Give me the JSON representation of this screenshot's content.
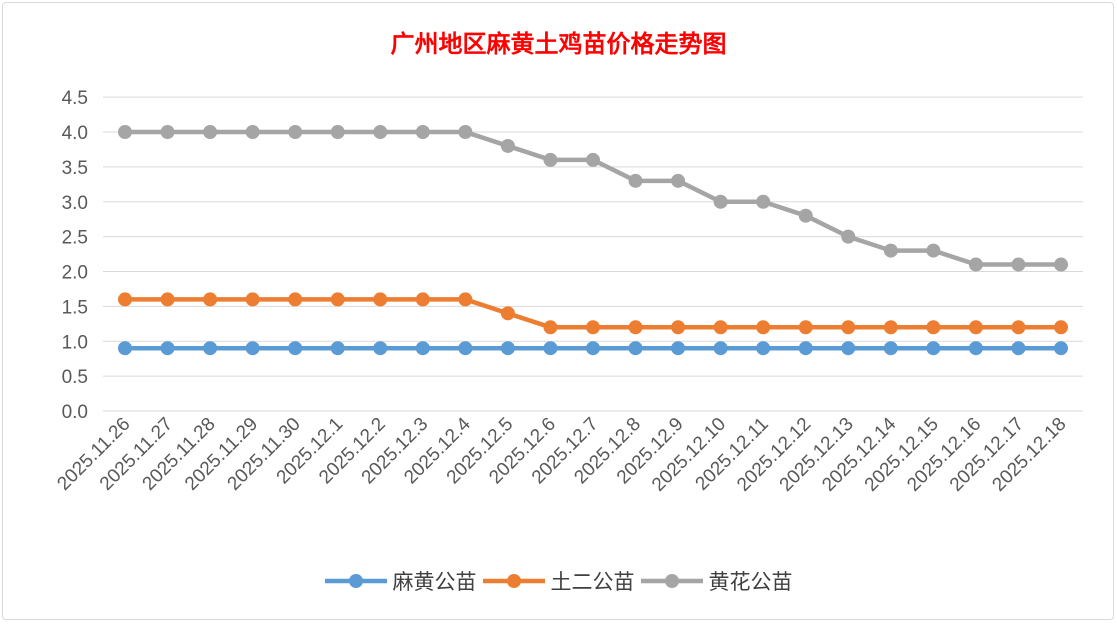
{
  "chart_data": {
    "type": "line",
    "title": "广州地区麻黄土鸡苗价格走势图",
    "xlabel": "",
    "ylabel": "",
    "ylim": [
      0,
      4.5
    ],
    "yticks": [
      "0.0",
      "0.5",
      "1.0",
      "1.5",
      "2.0",
      "2.5",
      "3.0",
      "3.5",
      "4.0",
      "4.5"
    ],
    "grid": true,
    "legend_position": "bottom",
    "categories": [
      "2025.11.26",
      "2025.11.27",
      "2025.11.28",
      "2025.11.29",
      "2025.11.30",
      "2025.12.1",
      "2025.12.2",
      "2025.12.3",
      "2025.12.4",
      "2025.12.5",
      "2025.12.6",
      "2025.12.7",
      "2025.12.8",
      "2025.12.9",
      "2025.12.10",
      "2025.12.11",
      "2025.12.12",
      "2025.12.13",
      "2025.12.14",
      "2025.12.15",
      "2025.12.16",
      "2025.12.17",
      "2025.12.18"
    ],
    "series": [
      {
        "name": "麻黄公苗",
        "color": "#5b9bd5",
        "values": [
          0.9,
          0.9,
          0.9,
          0.9,
          0.9,
          0.9,
          0.9,
          0.9,
          0.9,
          0.9,
          0.9,
          0.9,
          0.9,
          0.9,
          0.9,
          0.9,
          0.9,
          0.9,
          0.9,
          0.9,
          0.9,
          0.9,
          0.9
        ]
      },
      {
        "name": "土二公苗",
        "color": "#ed7d31",
        "values": [
          1.6,
          1.6,
          1.6,
          1.6,
          1.6,
          1.6,
          1.6,
          1.6,
          1.6,
          1.4,
          1.2,
          1.2,
          1.2,
          1.2,
          1.2,
          1.2,
          1.2,
          1.2,
          1.2,
          1.2,
          1.2,
          1.2,
          1.2
        ]
      },
      {
        "name": "黄花公苗",
        "color": "#a5a5a5",
        "values": [
          4.0,
          4.0,
          4.0,
          4.0,
          4.0,
          4.0,
          4.0,
          4.0,
          4.0,
          3.8,
          3.6,
          3.6,
          3.3,
          3.3,
          3.0,
          3.0,
          2.8,
          2.5,
          2.3,
          2.3,
          2.1,
          2.1,
          2.1
        ]
      }
    ]
  }
}
